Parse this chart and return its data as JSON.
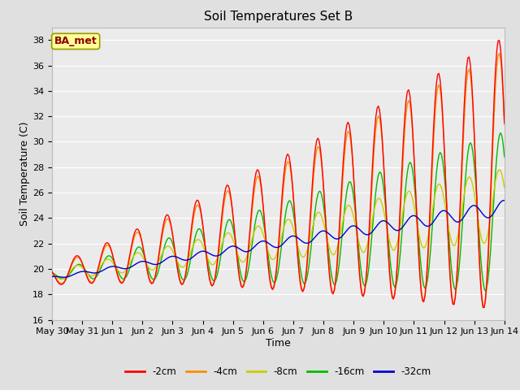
{
  "title": "Soil Temperatures Set B",
  "xlabel": "Time",
  "ylabel": "Soil Temperature (C)",
  "ylim": [
    16,
    39
  ],
  "yticks": [
    16,
    18,
    20,
    22,
    24,
    26,
    28,
    30,
    32,
    34,
    36,
    38
  ],
  "annotation_text": "BA_met",
  "annotation_color": "#8B0000",
  "annotation_bg": "#FFFF99",
  "annotation_border": "#999900",
  "line_colors": {
    "-2cm": "#FF0000",
    "-4cm": "#FF8C00",
    "-8cm": "#CCCC00",
    "-16cm": "#00BB00",
    "-32cm": "#0000CC"
  },
  "legend_colors": [
    "#FF0000",
    "#FF8C00",
    "#CCCC00",
    "#00BB00",
    "#0000CC"
  ],
  "legend_labels": [
    "-2cm",
    "-4cm",
    "-8cm",
    "-16cm",
    "-32cm"
  ],
  "background_color": "#E0E0E0",
  "plot_bg_color": "#EBEBEB",
  "grid_color": "#FFFFFF",
  "title_fontsize": 11,
  "axis_fontsize": 9,
  "tick_fontsize": 8,
  "xtick_labels": [
    "May 30",
    "May 31",
    "Jun 1",
    "Jun 2",
    "Jun 3",
    "Jun 4",
    "Jun 5",
    "Jun 6",
    "Jun 7",
    "Jun 8",
    "Jun 9",
    "Jun 10",
    "Jun 11",
    "Jun 12",
    "Jun 13",
    "Jun 14"
  ],
  "num_days": 15
}
